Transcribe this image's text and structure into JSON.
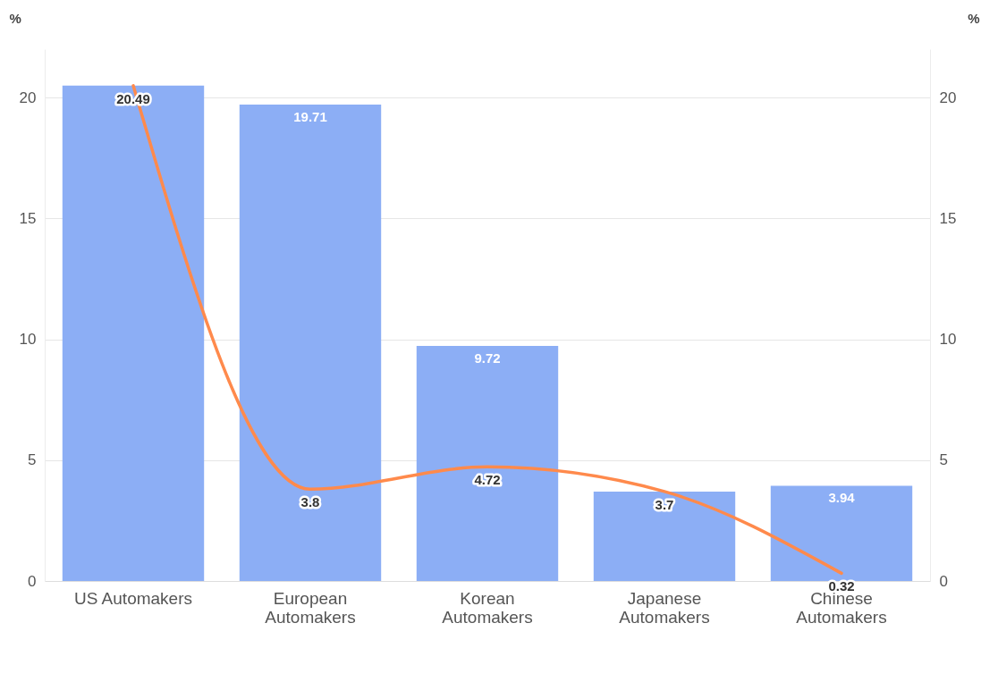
{
  "chart_data": {
    "type": "bar",
    "ylabel": "%",
    "y2label": "%",
    "categories": [
      "US Automakers",
      "European Automakers",
      "Korean Automakers",
      "Japanese Automakers",
      "Chinese Automakers"
    ],
    "series": [
      {
        "color": "#8caef5",
        "values": [
          20.49,
          19.71,
          9.72,
          3.7,
          3.94
        ],
        "value_labels": [
          null,
          "19.71",
          "9.72",
          null,
          "3.94"
        ]
      },
      {
        "type": "line",
        "axis": "y2",
        "color": "#ff8a4c",
        "values": [
          20.49,
          3.8,
          4.72,
          3.7,
          0.32
        ],
        "value_labels": [
          "20.49",
          "3.8",
          "4.72",
          "3.7",
          "0.32"
        ]
      }
    ],
    "ylim": [
      0,
      22
    ],
    "yticks": [
      0,
      5,
      10,
      15,
      20
    ],
    "y2lim": [
      0,
      22
    ],
    "y2ticks": [
      0,
      5,
      10,
      15,
      20
    ],
    "grid": "y",
    "marker": "none",
    "line_style": "solid"
  }
}
